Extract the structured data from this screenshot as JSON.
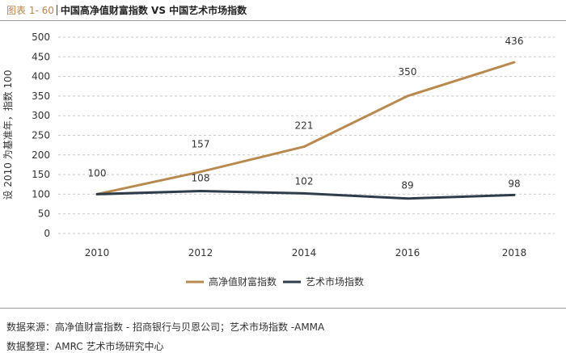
{
  "header": {
    "figure_label": "图表 1- 60",
    "title": "中国高净值财富指数 VS 中国艺术市场指数"
  },
  "chart_data": {
    "type": "line",
    "x": [
      "2010",
      "2012",
      "2014",
      "2016",
      "2018"
    ],
    "series": [
      {
        "name": "高净值财富指数",
        "values": [
          100,
          157,
          221,
          350,
          436
        ],
        "color": "#b98a4f"
      },
      {
        "name": "艺术市场指数",
        "values": [
          100,
          108,
          102,
          89,
          98
        ],
        "color": "#2f3d4a"
      }
    ],
    "ylabel": "设 2010 为基准年，指数 100",
    "xlabel": "",
    "ylim": [
      0,
      500
    ],
    "yticks": [
      0,
      50,
      100,
      150,
      200,
      250,
      300,
      350,
      400,
      450,
      500
    ],
    "grid": "horizontal-dashed",
    "legend": "bottom-center"
  },
  "notes": {
    "source": "数据来源：高净值财富指数 - 招商银行与贝恩公司；艺术市场指数 -AMMA",
    "compiled": "数据整理：AMRC 艺术市场研究中心"
  }
}
